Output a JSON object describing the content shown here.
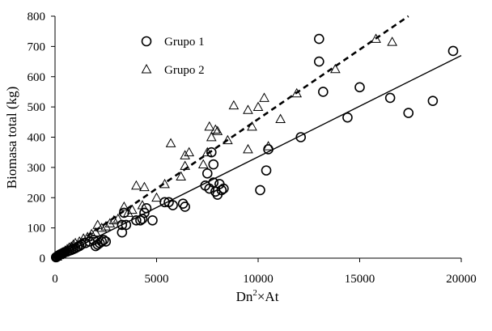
{
  "chart_data": {
    "type": "scatter",
    "xlabel": "Dn²×At",
    "xlabel_base": "Dn",
    "xlabel_sup": "2",
    "xlabel_rest": "×At",
    "ylabel": "Biomasa total (kg)",
    "xlim": [
      0,
      20000
    ],
    "ylim": [
      0,
      800
    ],
    "x_ticks": [
      0,
      5000,
      10000,
      15000,
      20000
    ],
    "y_ticks": [
      0,
      100,
      200,
      300,
      400,
      500,
      600,
      700,
      800
    ],
    "legend_position": "top-left",
    "series": [
      {
        "name": "Grupo 1",
        "marker": "circle",
        "fit_line": {
          "style": "solid",
          "x": [
            0,
            20000
          ],
          "y": [
            0,
            670
          ]
        },
        "points": [
          [
            50,
            3
          ],
          [
            100,
            5
          ],
          [
            150,
            8
          ],
          [
            200,
            10
          ],
          [
            250,
            12
          ],
          [
            300,
            14
          ],
          [
            350,
            15
          ],
          [
            400,
            17
          ],
          [
            450,
            19
          ],
          [
            500,
            20
          ],
          [
            600,
            22
          ],
          [
            700,
            25
          ],
          [
            800,
            27
          ],
          [
            900,
            30
          ],
          [
            1000,
            33
          ],
          [
            1100,
            37
          ],
          [
            1200,
            40
          ],
          [
            1300,
            45
          ],
          [
            1500,
            50
          ],
          [
            1700,
            55
          ],
          [
            1900,
            60
          ],
          [
            2000,
            40
          ],
          [
            2100,
            45
          ],
          [
            2200,
            50
          ],
          [
            2300,
            55
          ],
          [
            2400,
            60
          ],
          [
            2500,
            55
          ],
          [
            3300,
            85
          ],
          [
            3300,
            110
          ],
          [
            3400,
            150
          ],
          [
            3500,
            110
          ],
          [
            4000,
            125
          ],
          [
            4200,
            125
          ],
          [
            4300,
            130
          ],
          [
            4400,
            150
          ],
          [
            4500,
            165
          ],
          [
            4800,
            125
          ],
          [
            5400,
            185
          ],
          [
            5600,
            185
          ],
          [
            5800,
            175
          ],
          [
            6300,
            180
          ],
          [
            6400,
            170
          ],
          [
            7400,
            240
          ],
          [
            7500,
            280
          ],
          [
            7600,
            230
          ],
          [
            7700,
            350
          ],
          [
            7800,
            310
          ],
          [
            7800,
            250
          ],
          [
            7900,
            220
          ],
          [
            8000,
            210
          ],
          [
            8100,
            245
          ],
          [
            8200,
            225
          ],
          [
            8300,
            230
          ],
          [
            10100,
            225
          ],
          [
            10400,
            290
          ],
          [
            10500,
            360
          ],
          [
            12100,
            400
          ],
          [
            13000,
            725
          ],
          [
            13000,
            650
          ],
          [
            13200,
            550
          ],
          [
            14400,
            465
          ],
          [
            15000,
            565
          ],
          [
            16500,
            530
          ],
          [
            17400,
            480
          ],
          [
            18600,
            520
          ],
          [
            19600,
            685
          ]
        ]
      },
      {
        "name": "Grupo 2",
        "marker": "triangle",
        "fit_line": {
          "style": "dashed",
          "x": [
            0,
            17400
          ],
          "y": [
            0,
            800
          ]
        },
        "points": [
          [
            100,
            5
          ],
          [
            200,
            10
          ],
          [
            300,
            15
          ],
          [
            400,
            20
          ],
          [
            500,
            25
          ],
          [
            600,
            30
          ],
          [
            700,
            35
          ],
          [
            800,
            38
          ],
          [
            900,
            45
          ],
          [
            1000,
            50
          ],
          [
            1200,
            55
          ],
          [
            1400,
            65
          ],
          [
            1600,
            70
          ],
          [
            1800,
            80
          ],
          [
            2000,
            85
          ],
          [
            2100,
            110
          ],
          [
            2300,
            100
          ],
          [
            2500,
            105
          ],
          [
            2700,
            115
          ],
          [
            2900,
            125
          ],
          [
            3100,
            130
          ],
          [
            3400,
            170
          ],
          [
            3600,
            150
          ],
          [
            3800,
            160
          ],
          [
            4000,
            240
          ],
          [
            4300,
            175
          ],
          [
            4400,
            235
          ],
          [
            5000,
            200
          ],
          [
            5400,
            245
          ],
          [
            5700,
            380
          ],
          [
            6200,
            270
          ],
          [
            6400,
            305
          ],
          [
            6400,
            340
          ],
          [
            6600,
            350
          ],
          [
            7300,
            310
          ],
          [
            7500,
            350
          ],
          [
            7600,
            435
          ],
          [
            7700,
            400
          ],
          [
            7900,
            425
          ],
          [
            8000,
            420
          ],
          [
            8500,
            390
          ],
          [
            8800,
            505
          ],
          [
            9500,
            360
          ],
          [
            9500,
            490
          ],
          [
            9700,
            435
          ],
          [
            10000,
            500
          ],
          [
            10300,
            530
          ],
          [
            10500,
            370
          ],
          [
            11100,
            460
          ],
          [
            11900,
            545
          ],
          [
            13800,
            625
          ],
          [
            15800,
            725
          ],
          [
            16600,
            715
          ]
        ]
      }
    ]
  }
}
